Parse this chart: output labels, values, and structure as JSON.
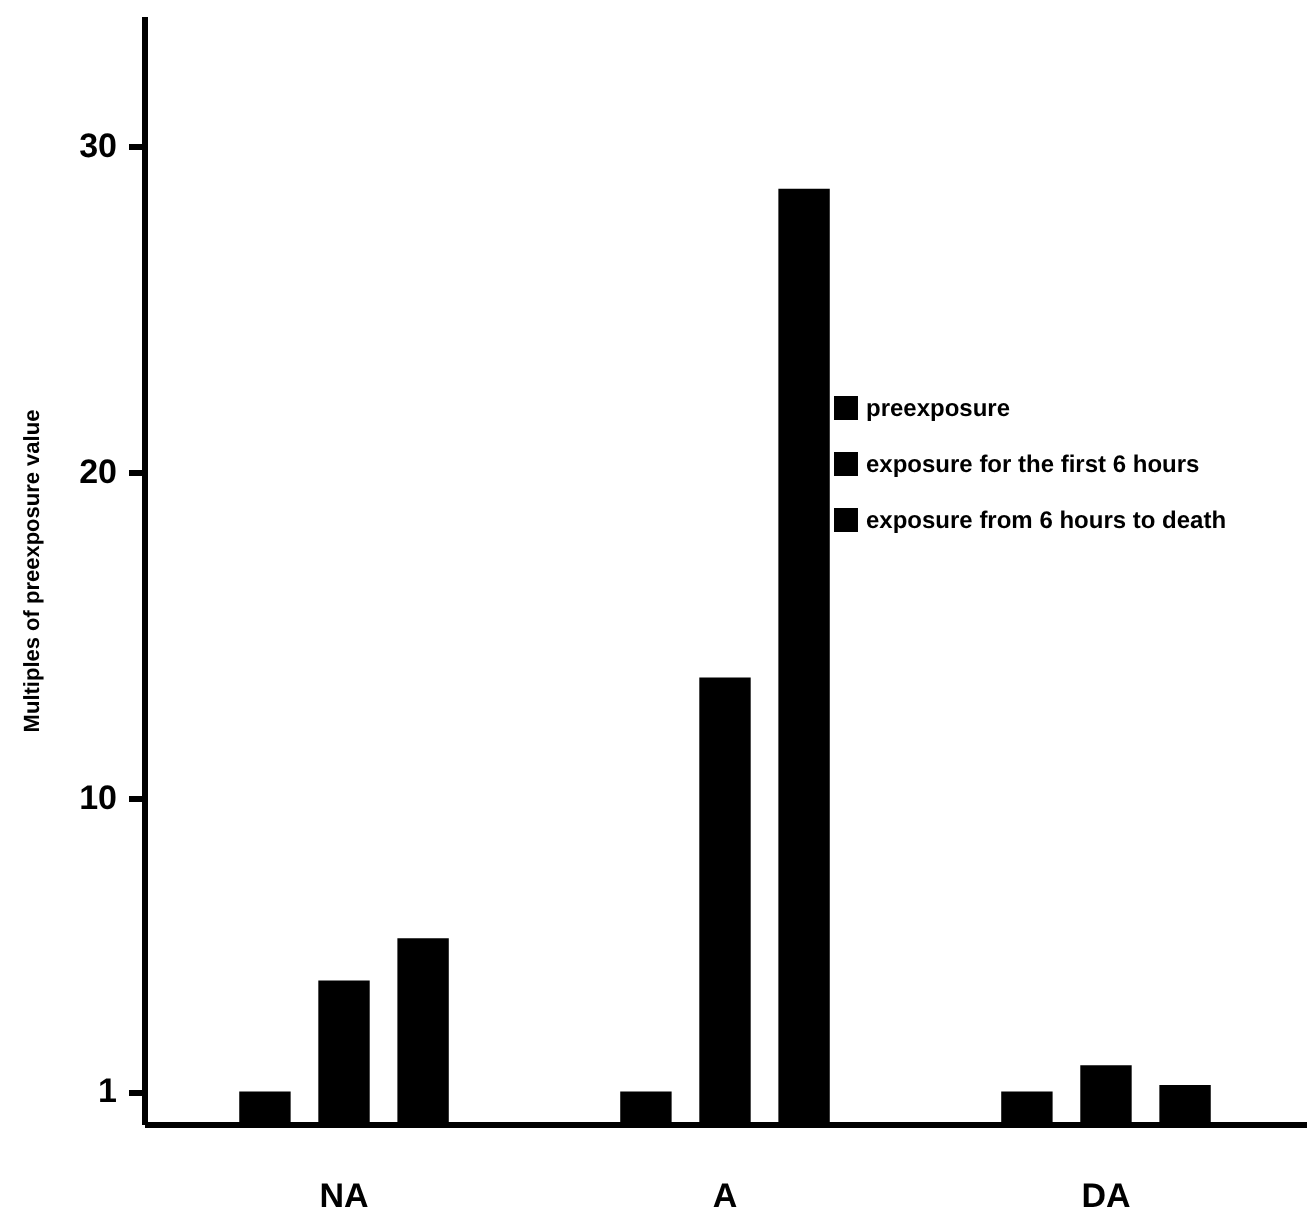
{
  "chart_data": {
    "type": "bar",
    "ylabel": "Multiples of  preexposure value",
    "categories": [
      "NA",
      "A",
      "DA"
    ],
    "series": [
      {
        "name": "preexposure",
        "color": "#000000",
        "values": [
          1.0,
          1.0,
          1.0
        ]
      },
      {
        "name": "exposure for the first 6 hours",
        "color": "#000000",
        "values": [
          4.4,
          13.7,
          1.8
        ]
      },
      {
        "name": "exposure from 6 hours to death",
        "color": "#000000",
        "values": [
          5.7,
          28.7,
          1.2
        ]
      }
    ],
    "ylim": [
      0,
      34
    ],
    "yticks": [
      1,
      10,
      20,
      30
    ],
    "grid": false,
    "legend": "top right"
  }
}
